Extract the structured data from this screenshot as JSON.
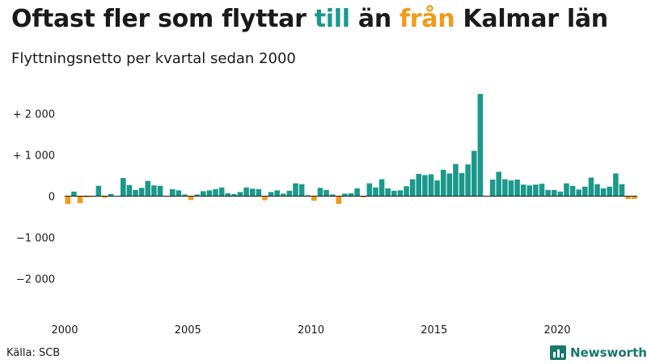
{
  "title_parts": {
    "part1": "Oftast fler som flyttar ",
    "till": "till",
    "part2": " än ",
    "fran": "från",
    "part3": " Kalmar län"
  },
  "subtitle": "Flyttningsnetto per kvartal sedan 2000",
  "source": "Källa: SCB",
  "logo_text": "Newsworthy",
  "colors": {
    "positive": "#1a998b",
    "negative": "#f29a1a",
    "text": "#1a1a1a",
    "logo": "#17786c"
  },
  "chart_data": {
    "type": "bar",
    "x_start": "2000-Q1",
    "x_ticks": [
      "2000",
      "2005",
      "2010",
      "2015",
      "2020"
    ],
    "y_ticks": [
      {
        "value": 2000,
        "label": "+ 2 000"
      },
      {
        "value": 1000,
        "label": "+ 1 000"
      },
      {
        "value": 0,
        "label": "0"
      },
      {
        "value": -1000,
        "label": "−1 000"
      },
      {
        "value": -2000,
        "label": "−2 000"
      }
    ],
    "ylim": [
      -2700,
      2600
    ],
    "grid": false,
    "values": [
      -190,
      110,
      -170,
      -30,
      -20,
      250,
      -40,
      50,
      -10,
      440,
      270,
      150,
      200,
      370,
      260,
      250,
      10,
      170,
      140,
      40,
      -90,
      40,
      120,
      140,
      170,
      210,
      70,
      50,
      100,
      210,
      180,
      170,
      -100,
      100,
      140,
      60,
      130,
      310,
      290,
      20,
      -110,
      200,
      150,
      40,
      -190,
      60,
      70,
      190,
      -30,
      310,
      210,
      410,
      190,
      130,
      140,
      240,
      410,
      540,
      510,
      530,
      380,
      640,
      550,
      780,
      560,
      770,
      1100,
      2480,
      0,
      400,
      590,
      410,
      380,
      400,
      280,
      260,
      280,
      300,
      150,
      150,
      110,
      310,
      250,
      160,
      230,
      450,
      290,
      190,
      230,
      550,
      290,
      -70,
      -70
    ]
  }
}
